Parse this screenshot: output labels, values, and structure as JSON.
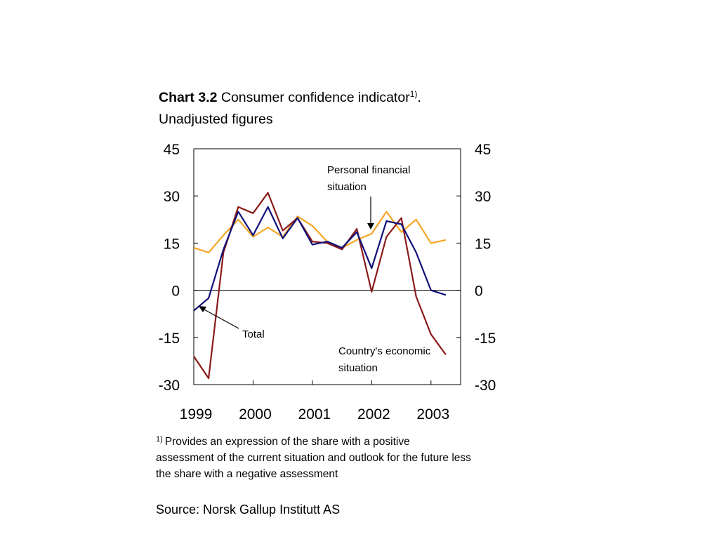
{
  "chart_data": {
    "type": "line",
    "title": {
      "label": "Chart 3.2",
      "text": "Consumer confidence indicator",
      "note_mark": "1)",
      "end": ".",
      "subtitle": "Unadjusted figures"
    },
    "x": [
      1999,
      1999.25,
      1999.5,
      1999.75,
      2000,
      2000.25,
      2000.5,
      2000.75,
      2001,
      2001.25,
      2001.5,
      2001.75,
      2002,
      2002.25,
      2002.5,
      2002.75,
      2003,
      2003.25
    ],
    "xlim": [
      1999,
      2003.5
    ],
    "xticks": [
      1999,
      2000,
      2001,
      2002,
      2003
    ],
    "ylim": [
      -30,
      45
    ],
    "yticks": [
      -30,
      -15,
      0,
      15,
      30,
      45
    ],
    "y2lim": [
      -30,
      45
    ],
    "y2ticks": [
      -30,
      -15,
      0,
      15,
      30,
      45
    ],
    "series": [
      {
        "name": "Personal financial situation",
        "color": "#f5a623",
        "values": [
          13.5,
          12,
          17.5,
          22.5,
          17,
          20,
          17,
          23.5,
          20.5,
          15.5,
          13.5,
          16,
          18,
          25,
          18.5,
          22.5,
          15,
          16
        ]
      },
      {
        "name": "Country's economic situation",
        "color": "#8b1a1a",
        "values": [
          -21,
          -28,
          12,
          26.5,
          24.5,
          31,
          19,
          23,
          15.5,
          15,
          13,
          19.5,
          -0.5,
          17,
          23,
          -2,
          -14,
          -20.5
        ]
      },
      {
        "name": "Total",
        "color": "#10107a",
        "values": [
          -6.5,
          -2.5,
          13,
          25,
          17.5,
          26.5,
          16.5,
          23,
          14.5,
          15.5,
          13.5,
          18.5,
          7,
          22,
          21,
          12,
          0,
          -1.5
        ]
      }
    ],
    "annotations": {
      "personal": [
        "Personal financial",
        "situation"
      ],
      "total": "Total",
      "country": [
        "Country's economic",
        "situation"
      ]
    },
    "footnote": {
      "mark": "1)",
      "lines": [
        "Provides an expression of the share with a positive",
        "assessment of the current situation and outlook for the future less",
        "the share with a negative assessment"
      ]
    },
    "source": "Source: Norsk Gallup Institutt AS"
  }
}
